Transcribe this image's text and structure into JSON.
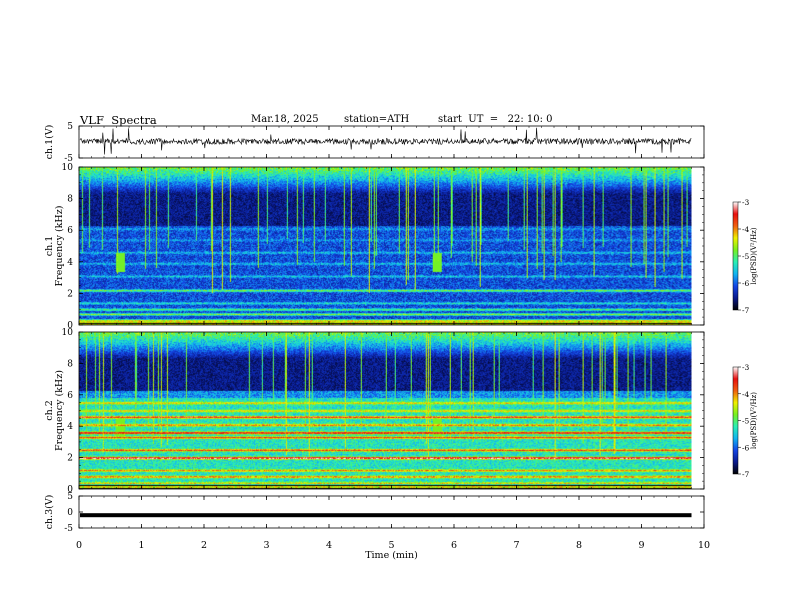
{
  "header": {
    "title": "VLF  Spectra",
    "date": "Mar.18, 2025",
    "station": "station=ATH",
    "start_ut": "start  UT  =   22: 10: 0"
  },
  "colors": {
    "trace": "#000000",
    "background": "#ffffff",
    "colormap": [
      "#000000",
      "#0a1a8c",
      "#1446e6",
      "#12b4f0",
      "#2af0b4",
      "#78f020",
      "#f0f000",
      "#f06010",
      "#e81010",
      "#ffffff"
    ]
  },
  "chart_data": [
    {
      "type": "line",
      "name": "ch1-waveform",
      "ylabel": "ch.1(V)",
      "ylim": [
        -5,
        5
      ],
      "yticks": [
        "5",
        "-5"
      ],
      "description_level": 0.2
    },
    {
      "type": "heatmap",
      "name": "ch1-spectrogram",
      "ylabel": "ch.1\nFrequency  (kHz)",
      "ylim": [
        0,
        10
      ],
      "yticks": [
        "0",
        "2",
        "4",
        "6",
        "8",
        "10"
      ],
      "colorbar": {
        "label": "log(PSD)(V²/Hz)",
        "range": [
          -7,
          -3
        ],
        "ticks": [
          "-3",
          "-4",
          "-5",
          "-6",
          "-7"
        ]
      }
    },
    {
      "type": "heatmap",
      "name": "ch2-spectrogram",
      "ylabel": "ch.2\nFrequency  (kHz)",
      "ylim": [
        0,
        10
      ],
      "yticks": [
        "0",
        "2",
        "4",
        "6",
        "8",
        "10"
      ],
      "colorbar": {
        "label": "log(PSD)(V²/Hz)",
        "range": [
          -7,
          -3
        ],
        "ticks": [
          "-3",
          "-4",
          "-5",
          "-6",
          "-7"
        ]
      }
    },
    {
      "type": "line",
      "name": "ch3-waveform",
      "ylabel": "ch.3(V)",
      "ylim": [
        -5,
        5
      ],
      "yticks": [
        "5",
        "0",
        "-5"
      ],
      "level": -1.0
    }
  ],
  "x_axis": {
    "label": "Time  (min)",
    "range": [
      0,
      10
    ],
    "data_end": 9.8,
    "ticks": [
      "0",
      "1",
      "2",
      "3",
      "4",
      "5",
      "6",
      "7",
      "8",
      "9",
      "10"
    ]
  }
}
